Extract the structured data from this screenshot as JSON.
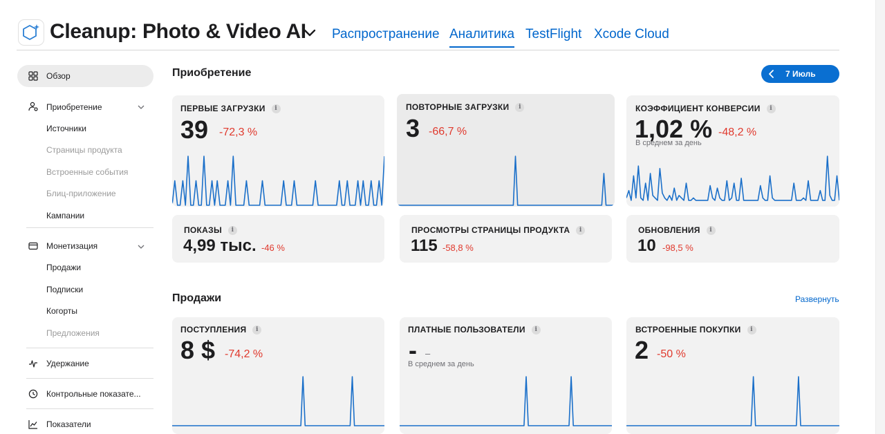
{
  "app": {
    "title": "Cleanup: Photo & Video AI",
    "icon": "app-cube-sparkle-icon"
  },
  "nav": {
    "tabs": [
      {
        "label": "Распространение",
        "active": false
      },
      {
        "label": "Аналитика",
        "active": true
      },
      {
        "label": "TestFlight",
        "active": false
      },
      {
        "label": "Xcode Cloud",
        "active": false
      }
    ]
  },
  "sidebar": {
    "overview": "Обзор",
    "acquisition": {
      "label": "Приобретение",
      "items": [
        {
          "label": "Источники",
          "enabled": true
        },
        {
          "label": "Страницы продукта",
          "enabled": false
        },
        {
          "label": "Встроенные события",
          "enabled": false
        },
        {
          "label": "Блиц-приложение",
          "enabled": false
        },
        {
          "label": "Кампании",
          "enabled": true
        }
      ]
    },
    "monetization": {
      "label": "Монетизация",
      "items": [
        {
          "label": "Продажи",
          "enabled": true
        },
        {
          "label": "Подписки",
          "enabled": true
        },
        {
          "label": "Когорты",
          "enabled": true
        },
        {
          "label": "Предложения",
          "enabled": false
        }
      ]
    },
    "retention": "Удержание",
    "benchmarks": "Контрольные показате...",
    "metrics": "Показатели"
  },
  "acquisition_section": {
    "title": "Приобретение",
    "date_label": "7 Июль"
  },
  "sales_section": {
    "title": "Продажи",
    "expand_label": "Развернуть"
  },
  "cards": {
    "first_downloads": {
      "title": "ПЕРВЫЕ ЗАГРУЗКИ",
      "value": "39",
      "delta": "-72,3 %"
    },
    "redownloads": {
      "title": "ПОВТОРНЫЕ ЗАГРУЗКИ",
      "value": "3",
      "delta": "-66,7 %"
    },
    "conversion": {
      "title": "КОЭФФИЦИЕНТ КОНВЕРСИИ",
      "value": "1,02 %",
      "delta": "-48,2 %",
      "note": "В среднем за день"
    },
    "impressions": {
      "title": "ПОКАЗЫ",
      "value": "4,99 тыс.",
      "delta": "-46 %"
    },
    "product_page_views": {
      "title": "ПРОСМОТРЫ СТРАНИЦЫ ПРОДУКТА",
      "value": "115",
      "delta": "-58,8 %"
    },
    "updates": {
      "title": "ОБНОВЛЕНИЯ",
      "value": "10",
      "delta": "-98,5 %"
    },
    "proceeds": {
      "title": "ПОСТУПЛЕНИЯ",
      "value": "8 $",
      "delta": "-74,2 %"
    },
    "paying_users": {
      "title": "ПЛАТНЫЕ ПОЛЬЗОВАТЕЛИ",
      "value": "-",
      "delta": "–",
      "note": "В среднем за день"
    },
    "iap": {
      "title": "ВСТРОЕННЫЕ ПОКУПКИ",
      "value": "2",
      "delta": "-50 %"
    }
  },
  "colors": {
    "accent": "#0066cc",
    "spark_line": "#1a6fc9",
    "negative": "#e0392d",
    "card_bg": "#f2f2f2"
  },
  "sparklines": {
    "first_downloads": [
      0,
      1,
      0,
      0,
      1,
      0,
      2,
      0,
      0,
      1,
      0,
      0,
      2,
      0,
      0,
      1,
      0,
      1,
      0,
      0,
      0,
      1,
      0,
      2,
      0,
      0,
      0,
      0,
      1,
      0,
      0,
      0,
      0,
      0,
      1,
      0,
      0,
      0,
      0,
      0,
      0,
      0,
      1,
      0,
      0,
      0,
      1,
      0,
      0,
      0,
      0,
      0,
      0,
      0,
      1,
      0,
      0,
      0,
      0,
      0,
      0,
      0,
      0,
      1,
      0,
      0,
      1,
      0,
      0,
      0,
      1,
      0,
      1,
      0,
      0,
      1,
      0,
      0,
      1,
      0,
      2
    ],
    "redownloads": [
      0,
      0,
      0,
      0,
      0,
      0,
      0,
      0,
      0,
      0,
      0,
      0,
      0,
      0,
      0,
      0,
      0,
      0,
      0,
      0,
      0,
      0,
      0,
      0,
      0,
      0,
      0,
      0,
      0,
      0,
      0,
      0,
      0,
      0,
      0,
      0,
      0,
      0,
      0,
      0,
      0,
      0,
      0,
      0,
      0,
      0,
      0,
      0,
      0,
      0,
      0,
      0,
      0,
      0,
      0,
      1,
      0,
      0,
      0,
      0,
      0,
      0,
      0,
      0,
      0,
      0,
      0,
      0,
      0,
      0,
      0,
      0,
      0,
      0,
      0,
      0,
      0,
      0,
      0,
      0,
      0,
      0,
      0,
      0,
      0,
      0,
      0,
      0,
      0,
      0,
      0,
      0,
      0,
      0,
      0,
      0,
      0.65,
      0,
      0,
      0,
      0,
      0
    ],
    "conversion": [
      0.3,
      0.6,
      0.2,
      1.2,
      0.3,
      1.6,
      0.3,
      0.2,
      0.9,
      0.2,
      1.3,
      0.4,
      0.3,
      0.2,
      1.5,
      0.5,
      0.3,
      0.2,
      0.4,
      0.2,
      0.7,
      0.2,
      0.4,
      0.3,
      0.2,
      0.9,
      0.2,
      0.2,
      0.3,
      0.2,
      0.2,
      0.2,
      0.2,
      0.2,
      0.2,
      0.8,
      0.3,
      0.2,
      0.7,
      0.3,
      0.2,
      0.2,
      1.0,
      0.2,
      0.3,
      0.9,
      0.2,
      0.2,
      1.1,
      0.2,
      0.2,
      0.2,
      0.2,
      0.2,
      0.2,
      0.2,
      0.8,
      0.3,
      0.2,
      0.2,
      1.2,
      0.3,
      0.2,
      0.2,
      0.2,
      0.2,
      0.2,
      0.2,
      0.2,
      0.2,
      0.9,
      0.2,
      0.2,
      0.2,
      0.3,
      0.2,
      1.0,
      0.2,
      0.2,
      0.2,
      0.2,
      0.6,
      0.2,
      0.2,
      2.0,
      0.4,
      0.2,
      0.2,
      1.2,
      0.2
    ],
    "proceeds": [
      0,
      0,
      0,
      0,
      0,
      0,
      0,
      0,
      0,
      0,
      0,
      0,
      0,
      0,
      0,
      0,
      0,
      0,
      0,
      0,
      0,
      0,
      0,
      0,
      0,
      0,
      0,
      0,
      0,
      0,
      0,
      0,
      0,
      0,
      0,
      0,
      0,
      0,
      0,
      0,
      0,
      0,
      0,
      0,
      0,
      0,
      0,
      0,
      0,
      0,
      0,
      0,
      0,
      0,
      0,
      0,
      0,
      0,
      0,
      0,
      0,
      1,
      0,
      0,
      0,
      0,
      0,
      0,
      0,
      0,
      0,
      0,
      0,
      0,
      0,
      0,
      0,
      0,
      0,
      0,
      0,
      0,
      0,
      0,
      1,
      0,
      0,
      0,
      0,
      0,
      0,
      0,
      0,
      0,
      0,
      0,
      0,
      0,
      0,
      0
    ],
    "paying_users": [
      0,
      0,
      0,
      0,
      0,
      0,
      0,
      0,
      0,
      0,
      0,
      0,
      0,
      0,
      0,
      0,
      0,
      0,
      0,
      0,
      0,
      0,
      0,
      0,
      0,
      0,
      0,
      0,
      0,
      0,
      0,
      0,
      0,
      0,
      0,
      0,
      0,
      0,
      0,
      0,
      0,
      0,
      0,
      0,
      0,
      0,
      0,
      0,
      0,
      0,
      0,
      0,
      0,
      0,
      0,
      0,
      0,
      0,
      0,
      1,
      0,
      0,
      0,
      0,
      0,
      0,
      0,
      0,
      0,
      0,
      0,
      0,
      0,
      0,
      0,
      0,
      0,
      0,
      0,
      0,
      1,
      0,
      0,
      0,
      0,
      0,
      0,
      0,
      0,
      0,
      0,
      0,
      0,
      0,
      0,
      0,
      0,
      0,
      0,
      0
    ],
    "iap": [
      0,
      0,
      0,
      0,
      0,
      0,
      0,
      0,
      0,
      0,
      0,
      0,
      0,
      0,
      0,
      0,
      0,
      0,
      0,
      0,
      0,
      0,
      0,
      0,
      0,
      0,
      0,
      0,
      0,
      0,
      0,
      0,
      0,
      0,
      0,
      0,
      0,
      0,
      0,
      0,
      0,
      0,
      0,
      0,
      0,
      0,
      0,
      0,
      0,
      0,
      0,
      0,
      0,
      0,
      0,
      0,
      0,
      0,
      0,
      1,
      0,
      0,
      0,
      0,
      0,
      0,
      0,
      0,
      0,
      0,
      0,
      0,
      0,
      0,
      0,
      0,
      0,
      0,
      0,
      0,
      1,
      0,
      0,
      0,
      0,
      0,
      0,
      0,
      0,
      0,
      0,
      0,
      0,
      0,
      0,
      0,
      0,
      0,
      0,
      0
    ]
  }
}
